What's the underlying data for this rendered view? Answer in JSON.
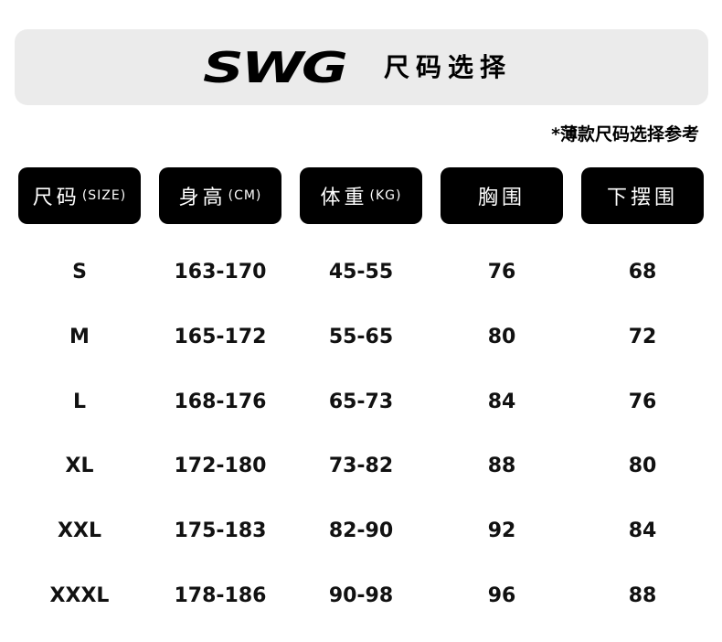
{
  "header": {
    "logo": "SWG",
    "title": "尺码选择"
  },
  "note": "*薄款尺码选择参考",
  "table": {
    "columns": [
      {
        "label": "尺码",
        "unit": "(SIZE)"
      },
      {
        "label": "身高",
        "unit": "(CM)"
      },
      {
        "label": "体重",
        "unit": "(KG)"
      },
      {
        "label": "胸围"
      },
      {
        "label": "下摆围"
      }
    ],
    "rows": [
      [
        "S",
        "163-170",
        "45-55",
        "76",
        "68"
      ],
      [
        "M",
        "165-172",
        "55-65",
        "80",
        "72"
      ],
      [
        "L",
        "168-176",
        "65-73",
        "84",
        "76"
      ],
      [
        "XL",
        "172-180",
        "73-82",
        "88",
        "80"
      ],
      [
        "XXL",
        "175-183",
        "82-90",
        "92",
        "84"
      ],
      [
        "XXXL",
        "178-186",
        "90-98",
        "96",
        "88"
      ]
    ]
  }
}
